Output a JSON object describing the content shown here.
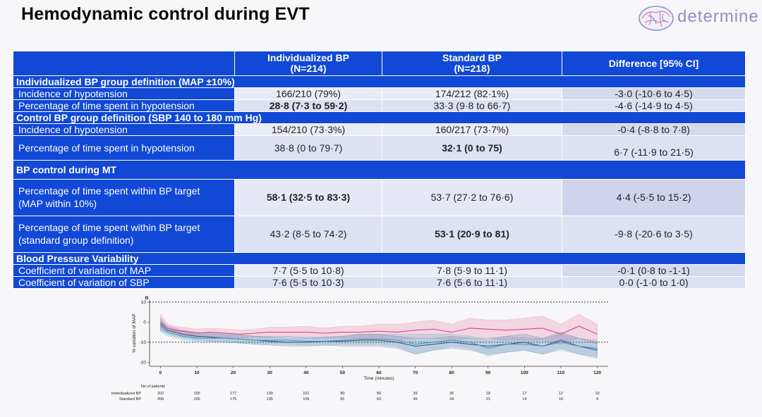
{
  "slide": {
    "title": "Hemodynamic control during EVT",
    "logo_text": "determine"
  },
  "table": {
    "columns": [
      {
        "line1": "Individualized BP",
        "line2": "(N=214)"
      },
      {
        "line1": "Standard BP",
        "line2": "(N=218)"
      },
      {
        "line1": "Difference [95% CI]",
        "line2": ""
      }
    ],
    "sections": [
      {
        "heading": "Individualized BP group definition (MAP ±10%)",
        "rows": [
          {
            "label": "Incidence of hypotension",
            "ind": "166/210 (79%)",
            "std": "174/212 (82·1%)",
            "diff": "-3·0 (-10·6 to 4·5)",
            "bold": ""
          },
          {
            "label": "Percentage of time spent in hypotension",
            "ind": "28·8 (7·3 to 59·2)",
            "std": "33·3 (9·8 to 66·7)",
            "diff": "-4·6 (-14·9 to 4·5)",
            "bold": "ind"
          }
        ]
      },
      {
        "heading": "Control BP group definition (SBP 140 to 180 mm Hg)",
        "rows": [
          {
            "label": "Incidence of hypotension",
            "ind": "154/210 (73·3%)",
            "std": "160/217 (73·7%)",
            "diff": "-0·4 (-8·8 to 7·8)",
            "bold": ""
          },
          {
            "label": "Percentage of time spent in hypotension",
            "ind": "38·8 (0 to 79·7)",
            "std": "32·1 (0 to 75)",
            "diff": "6·7 (-11·9 to 21·5)",
            "bold": "std"
          }
        ]
      },
      {
        "heading": "BP control during MT",
        "rows": [
          {
            "label1": "Percentage of time spent within BP target",
            "label2": "(MAP within 10%)",
            "ind": "58·1 (32·5 to 83·3)",
            "std": "53·7 (27·2 to 76·6)",
            "diff": "4·4 (-5·5 to 15·2)",
            "bold": "ind"
          },
          {
            "label1": "Percentage of time spent within BP target",
            "label2": "(standard group definition)",
            "ind": "43·2 (8·5 to 74·2)",
            "std": "53·1 (20·9 to 81)",
            "diff": "-9·8 (-20·6 to 3·5)",
            "bold": "std"
          }
        ]
      },
      {
        "heading": "Blood Pressure Variability",
        "rows": [
          {
            "label": "Coefficient of variation of MAP",
            "ind": "7·7 (5·5 to 10·8)",
            "std": "7·8 (5·9 to 11·1)",
            "diff": "-0·1 (0·8 to -1·1)",
            "bold": ""
          },
          {
            "label": "Coefficient of variation of SBP",
            "ind": "7·6 (5·5 to 10·3)",
            "std": "7·6 (5·6 to 11·1)",
            "diff": "0·0 (-1·0 to 1·0)",
            "bold": ""
          }
        ]
      }
    ]
  },
  "chart_data": {
    "type": "line",
    "panel_label": "B",
    "xlabel": "Time (minutes)",
    "ylabel": "% variation of MAP",
    "x_ticks": [
      0,
      10,
      20,
      30,
      40,
      50,
      60,
      70,
      80,
      90,
      100,
      110,
      120
    ],
    "y_ticks": [
      -20,
      -10,
      0,
      10
    ],
    "xlim": [
      -3,
      123
    ],
    "ylim": [
      -22,
      11
    ],
    "reference_lines": [
      10,
      -10
    ],
    "series": [
      {
        "color": "#e0457b",
        "x": [
          0,
          2,
          4,
          6,
          8,
          10,
          14,
          18,
          22,
          26,
          30,
          35,
          40,
          45,
          50,
          55,
          60,
          65,
          70,
          75,
          80,
          85,
          90,
          95,
          100,
          105,
          110,
          115,
          120
        ],
        "y": [
          0,
          -3,
          -4,
          -4.5,
          -5,
          -5.5,
          -5,
          -5.5,
          -6,
          -5.5,
          -5,
          -5,
          -5,
          -5.5,
          -5,
          -5,
          -4.5,
          -5,
          -4,
          -3.5,
          -5,
          -3,
          -3.5,
          -4,
          -3.5,
          -3,
          -6,
          -2,
          -6
        ],
        "band_lo": [
          -4,
          -5,
          -6,
          -6.5,
          -7,
          -7.5,
          -7,
          -7.5,
          -8,
          -7.5,
          -7.5,
          -7.5,
          -8,
          -8,
          -8,
          -8,
          -8,
          -9,
          -8,
          -8,
          -9,
          -8,
          -8,
          -9,
          -9,
          -9,
          -11,
          -8,
          -11
        ],
        "band_hi": [
          4,
          -1,
          -2,
          -2.5,
          -3,
          -3.5,
          -3,
          -3.5,
          -4,
          -3.5,
          -2.5,
          -2.5,
          -2,
          -3,
          -2,
          -2,
          -1,
          -1,
          0,
          1,
          -1,
          2,
          1,
          1,
          2,
          3,
          -1,
          4,
          -1
        ]
      },
      {
        "color": "#4a4f8c",
        "x": [
          0,
          2,
          4,
          6,
          8,
          10,
          14,
          18,
          22,
          26,
          30,
          35,
          40,
          45,
          50,
          55,
          60,
          65,
          70,
          75,
          80,
          85,
          90,
          95,
          100,
          105,
          110,
          115,
          120
        ],
        "y": [
          -1,
          -4,
          -5,
          -6,
          -6.5,
          -7,
          -7.5,
          -8,
          -8.5,
          -9,
          -9.5,
          -10,
          -10,
          -9.5,
          -9.5,
          -9,
          -9,
          -10,
          -12,
          -11,
          -10,
          -11,
          -12,
          -11,
          -10,
          -12,
          -9,
          -12,
          -14
        ],
        "band_lo": [
          -4,
          -6,
          -7,
          -8,
          -8.5,
          -9,
          -9.5,
          -10,
          -10.5,
          -11,
          -11.5,
          -12,
          -12,
          -11.5,
          -12,
          -12,
          -12,
          -13,
          -16,
          -14,
          -13,
          -14,
          -16,
          -15,
          -14,
          -16,
          -13,
          -16,
          -18
        ],
        "band_hi": [
          2,
          -2,
          -3,
          -4,
          -4.5,
          -5,
          -5.5,
          -6,
          -6.5,
          -7,
          -7.5,
          -8,
          -8,
          -7.5,
          -7,
          -6,
          -6,
          -7,
          -8,
          -8,
          -7,
          -8,
          -8,
          -7,
          -6,
          -8,
          -5,
          -8,
          -10
        ]
      },
      {
        "color": "#3a9fc4",
        "x": [
          0,
          2,
          4,
          6,
          8,
          10,
          14,
          18,
          22,
          26,
          30,
          35,
          40,
          45,
          50,
          55,
          60,
          65,
          70,
          75,
          80,
          85,
          90,
          95,
          100,
          105,
          110,
          115,
          120
        ],
        "y": [
          -2,
          -5,
          -6,
          -7,
          -7.5,
          -8,
          -8,
          -8,
          -8.5,
          -9,
          -9,
          -9,
          -9.5,
          -9.5,
          -9,
          -8.5,
          -8.5,
          -9,
          -11,
          -10,
          -9,
          -10,
          -13,
          -11,
          -11,
          -12,
          -10,
          -12,
          -13
        ],
        "band_lo": [
          -5,
          -7,
          -8,
          -9,
          -9.5,
          -10,
          -10,
          -10,
          -10.5,
          -11,
          -11,
          -11,
          -11.5,
          -11.5,
          -11,
          -11,
          -11,
          -12,
          -16,
          -14,
          -12,
          -13,
          -17,
          -15,
          -14,
          -16,
          -14,
          -16,
          -17
        ],
        "band_hi": [
          1,
          -3,
          -4,
          -5,
          -5.5,
          -6,
          -6,
          -6,
          -6.5,
          -7,
          -7,
          -7,
          -7.5,
          -7.5,
          -7,
          -6,
          -6,
          -6,
          -6,
          -6,
          -6,
          -7,
          -9,
          -7,
          -8,
          -8,
          -6,
          -8,
          -9
        ]
      }
    ],
    "patients": {
      "header": "No of patients",
      "rows": [
        {
          "label": "Individualized BP",
          "values": [
            "202",
            "195",
            "177",
            "139",
            "101",
            "80",
            "56",
            "39",
            "26",
            "18",
            "17",
            "12",
            "10"
          ]
        },
        {
          "label": "Standard BP",
          "values": [
            "208",
            "195",
            "175",
            "135",
            "106",
            "81",
            "63",
            "46",
            "34",
            "21",
            "14",
            "10",
            "9"
          ]
        }
      ]
    }
  }
}
